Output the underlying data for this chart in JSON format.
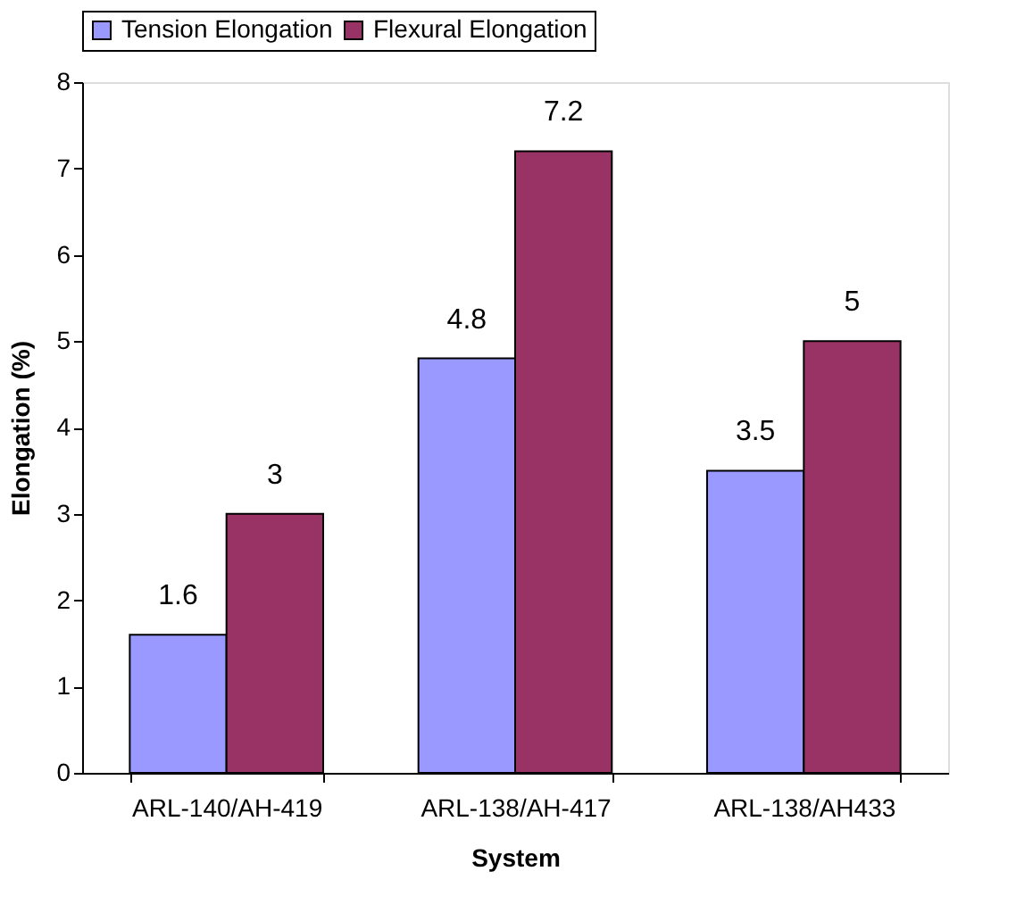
{
  "chart_data": {
    "type": "bar",
    "xlabel": "System",
    "ylabel": "Elongation (%)",
    "categories": [
      "ARL-140/AH-419",
      "ARL-138/AH-417",
      "ARL-138/AH433"
    ],
    "series": [
      {
        "name": "Tension Elongation",
        "color": "#9999ff",
        "values": [
          1.6,
          4.8,
          3.5
        ]
      },
      {
        "name": "Flexural Elongation",
        "color": "#993366",
        "values": [
          3,
          7.2,
          5
        ]
      }
    ],
    "ylim": [
      0,
      8
    ],
    "yticks": [
      0,
      1,
      2,
      3,
      4,
      5,
      6,
      7,
      8
    ],
    "grid": false,
    "legend": "top",
    "data_labels": true
  }
}
